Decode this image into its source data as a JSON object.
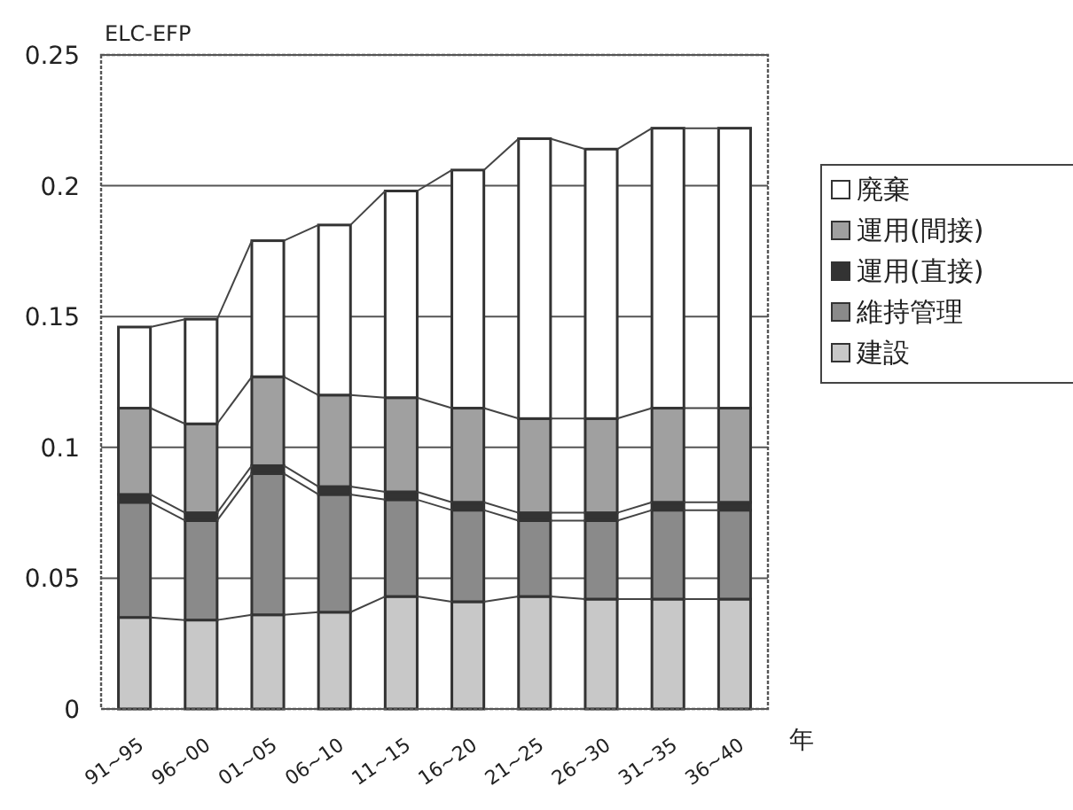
{
  "chart_data": {
    "type": "bar",
    "stacked": true,
    "ylabel": "ELC-EFP",
    "xlabel": "年",
    "categories": [
      "91~95",
      "96~00",
      "01~05",
      "06~10",
      "11~15",
      "16~20",
      "21~25",
      "26~30",
      "31~35",
      "36~40"
    ],
    "series": [
      {
        "name": "建設",
        "color": "#c8c8c8",
        "values": [
          0.035,
          0.034,
          0.036,
          0.037,
          0.043,
          0.041,
          0.043,
          0.042,
          0.042,
          0.042
        ]
      },
      {
        "name": "維持管理",
        "color": "#8a8a8a",
        "values": [
          0.044,
          0.038,
          0.054,
          0.045,
          0.037,
          0.035,
          0.029,
          0.03,
          0.034,
          0.034
        ]
      },
      {
        "name": "運用(直接)",
        "color": "#333333",
        "values": [
          0.003,
          0.003,
          0.003,
          0.003,
          0.003,
          0.003,
          0.003,
          0.003,
          0.003,
          0.003
        ]
      },
      {
        "name": "運用(間接)",
        "color": "#a0a0a0",
        "values": [
          0.033,
          0.034,
          0.034,
          0.035,
          0.036,
          0.036,
          0.036,
          0.036,
          0.036,
          0.036
        ]
      },
      {
        "name": "廃棄",
        "color": "#ffffff",
        "values": [
          0.031,
          0.04,
          0.052,
          0.065,
          0.079,
          0.091,
          0.107,
          0.103,
          0.107,
          0.107
        ]
      }
    ],
    "ylim": [
      0,
      0.25
    ],
    "yticks": [
      0,
      0.05,
      0.1,
      0.15,
      0.2,
      0.25
    ],
    "grid": "y",
    "legend": "right"
  }
}
